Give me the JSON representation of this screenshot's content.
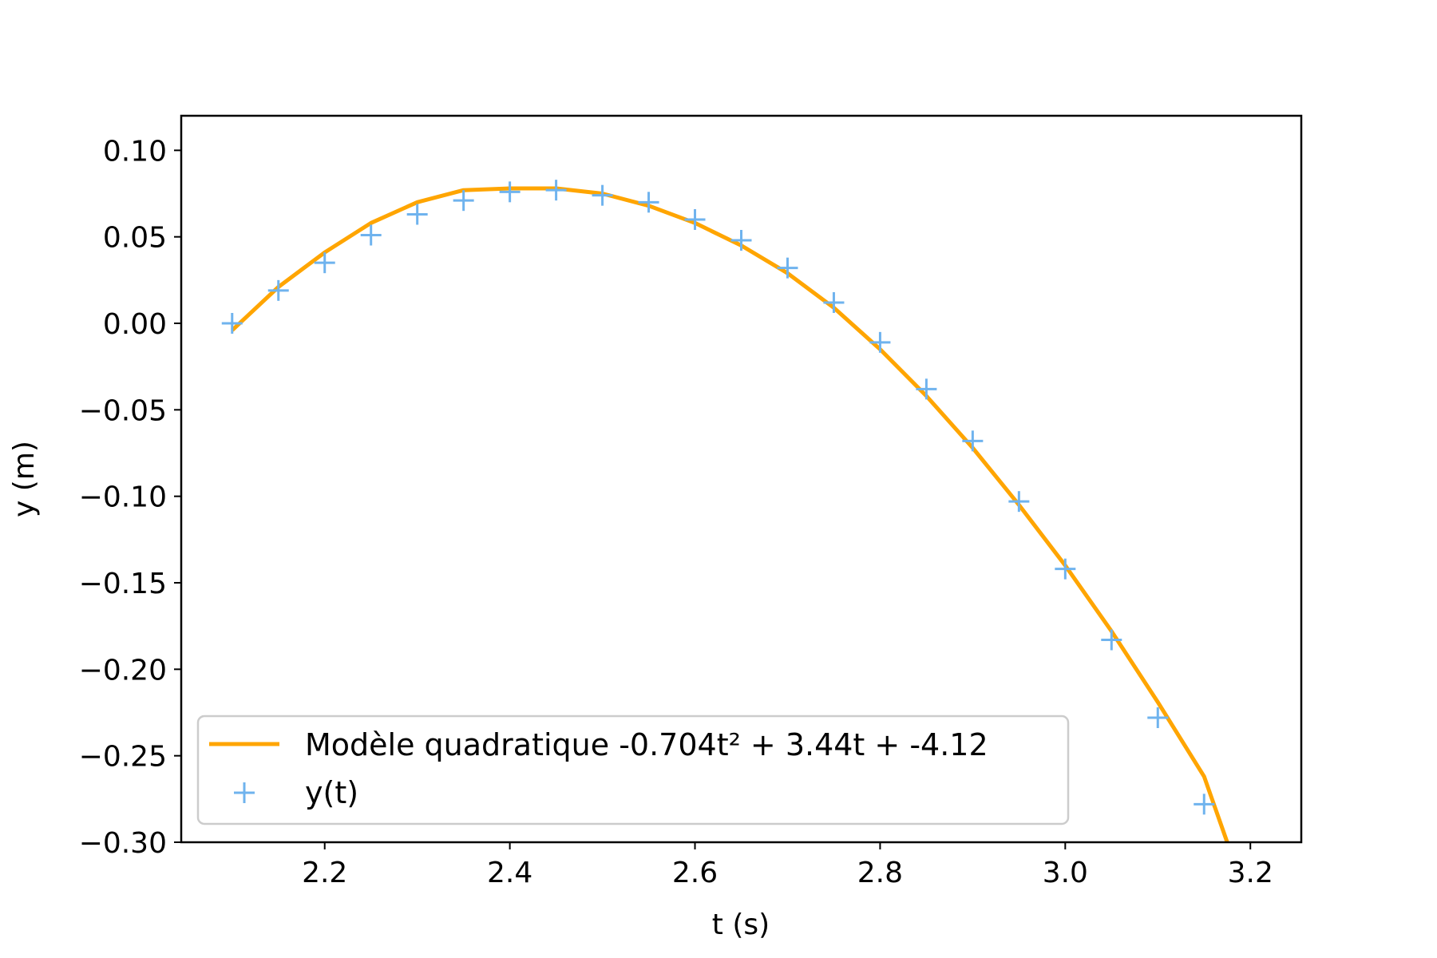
{
  "chart_data": {
    "type": "line",
    "title": "",
    "xlabel": "t (s)",
    "ylabel": "y (m)",
    "xlim": [
      2.045,
      3.255
    ],
    "ylim": [
      -0.3,
      0.12
    ],
    "xticks": [
      2.2,
      2.4,
      2.6,
      2.8,
      3.0,
      3.2
    ],
    "xtick_labels": [
      "2.2",
      "2.4",
      "2.6",
      "2.8",
      "3.0",
      "3.2"
    ],
    "yticks": [
      0.1,
      0.05,
      0.0,
      -0.05,
      -0.1,
      -0.15,
      -0.2,
      -0.25,
      -0.3
    ],
    "ytick_labels": [
      "0.10",
      "0.05",
      "0.00",
      "−0.05",
      "−0.10",
      "−0.15",
      "−0.20",
      "−0.25",
      "−0.30"
    ],
    "grid": false,
    "legend_position": "lower-left",
    "series": [
      {
        "name": "Modèle quadratique -0.704t² + 3.44t + -4.12",
        "kind": "line",
        "color": "#ffa500",
        "x": [
          2.1,
          2.15,
          2.2,
          2.25,
          2.3,
          2.35,
          2.4,
          2.45,
          2.5,
          2.55,
          2.6,
          2.65,
          2.7,
          2.75,
          2.8,
          2.85,
          2.9,
          2.95,
          3.0,
          3.05,
          3.1,
          3.15,
          3.175
        ],
        "y": [
          -0.004,
          0.021,
          0.041,
          0.058,
          0.07,
          0.077,
          0.078,
          0.078,
          0.075,
          0.068,
          0.058,
          0.045,
          0.029,
          0.009,
          -0.015,
          -0.042,
          -0.072,
          -0.105,
          -0.14,
          -0.178,
          -0.219,
          -0.262,
          -0.3
        ]
      },
      {
        "name": "y(t)",
        "kind": "markers",
        "marker": "plus",
        "color": "#6fb3ee",
        "x": [
          2.1,
          2.15,
          2.2,
          2.25,
          2.3,
          2.35,
          2.4,
          2.45,
          2.5,
          2.55,
          2.6,
          2.65,
          2.7,
          2.75,
          2.8,
          2.85,
          2.9,
          2.95,
          3.0,
          3.05,
          3.1,
          3.15
        ],
        "y": [
          0.0,
          0.019,
          0.035,
          0.051,
          0.063,
          0.071,
          0.076,
          0.077,
          0.074,
          0.07,
          0.06,
          0.048,
          0.032,
          0.012,
          -0.011,
          -0.038,
          -0.068,
          -0.103,
          -0.142,
          -0.183,
          -0.228,
          -0.278
        ]
      }
    ]
  }
}
